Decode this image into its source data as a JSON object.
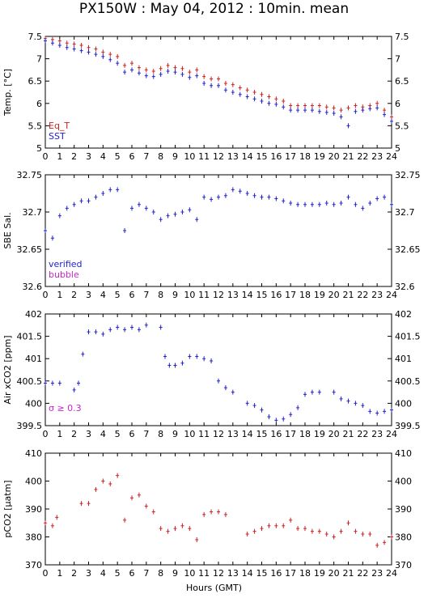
{
  "title": "PX150W : May 04, 2012 : 10min. mean",
  "xlabel": "Hours (GMT)",
  "chart_data": [
    {
      "type": "scatter",
      "ylabel": "Temp. [°C]",
      "ylim": [
        5,
        7.5
      ],
      "yticks": [
        5,
        5.5,
        6,
        6.5,
        7,
        7.5
      ],
      "xlim": [
        0,
        24
      ],
      "xticks": [
        0,
        1,
        2,
        3,
        4,
        5,
        6,
        7,
        8,
        9,
        10,
        11,
        12,
        13,
        14,
        15,
        16,
        17,
        18,
        19,
        20,
        21,
        22,
        23,
        24
      ],
      "legend": [
        {
          "name": "Eq_T",
          "color": "#cc2222"
        },
        {
          "name": "SST",
          "color": "#2222cc"
        }
      ],
      "legend_position": "bottom-left",
      "series": [
        {
          "name": "Eq_T",
          "color": "#cc2222",
          "points": [
            [
              0,
              7.45
            ],
            [
              0.5,
              7.43
            ],
            [
              1,
              7.4
            ],
            [
              1.5,
              7.35
            ],
            [
              2,
              7.33
            ],
            [
              2.5,
              7.3
            ],
            [
              3,
              7.25
            ],
            [
              3.5,
              7.22
            ],
            [
              4,
              7.15
            ],
            [
              4.5,
              7.1
            ],
            [
              5,
              7.05
            ],
            [
              5.5,
              6.85
            ],
            [
              6,
              6.9
            ],
            [
              6.5,
              6.8
            ],
            [
              7,
              6.75
            ],
            [
              7.5,
              6.72
            ],
            [
              8,
              6.78
            ],
            [
              8.5,
              6.85
            ],
            [
              9,
              6.8
            ],
            [
              9.5,
              6.78
            ],
            [
              10,
              6.7
            ],
            [
              10.5,
              6.75
            ],
            [
              11,
              6.6
            ],
            [
              11.5,
              6.55
            ],
            [
              12,
              6.55
            ],
            [
              12.5,
              6.45
            ],
            [
              13,
              6.42
            ],
            [
              13.5,
              6.35
            ],
            [
              14,
              6.3
            ],
            [
              14.5,
              6.25
            ],
            [
              15,
              6.2
            ],
            [
              15.5,
              6.15
            ],
            [
              16,
              6.1
            ],
            [
              16.5,
              6.05
            ],
            [
              17,
              5.95
            ],
            [
              17.5,
              5.95
            ],
            [
              18,
              5.95
            ],
            [
              18.5,
              5.95
            ],
            [
              19,
              5.95
            ],
            [
              19.5,
              5.92
            ],
            [
              20,
              5.9
            ],
            [
              20.5,
              5.85
            ],
            [
              21,
              5.9
            ],
            [
              21.5,
              5.95
            ],
            [
              22,
              5.92
            ],
            [
              22.5,
              5.95
            ],
            [
              23,
              6.0
            ],
            [
              23.5,
              5.85
            ],
            [
              24,
              5.7
            ]
          ]
        },
        {
          "name": "SST",
          "color": "#2222cc",
          "points": [
            [
              0,
              7.4
            ],
            [
              0.5,
              7.35
            ],
            [
              1,
              7.3
            ],
            [
              1.5,
              7.25
            ],
            [
              2,
              7.22
            ],
            [
              2.5,
              7.18
            ],
            [
              3,
              7.15
            ],
            [
              3.5,
              7.1
            ],
            [
              4,
              7.05
            ],
            [
              4.5,
              6.98
            ],
            [
              5,
              6.9
            ],
            [
              5.5,
              6.7
            ],
            [
              6,
              6.75
            ],
            [
              6.5,
              6.68
            ],
            [
              7,
              6.62
            ],
            [
              7.5,
              6.6
            ],
            [
              8,
              6.65
            ],
            [
              8.5,
              6.72
            ],
            [
              9,
              6.7
            ],
            [
              9.5,
              6.65
            ],
            [
              10,
              6.58
            ],
            [
              10.5,
              6.62
            ],
            [
              11,
              6.45
            ],
            [
              11.5,
              6.4
            ],
            [
              12,
              6.4
            ],
            [
              12.5,
              6.3
            ],
            [
              13,
              6.25
            ],
            [
              13.5,
              6.2
            ],
            [
              14,
              6.15
            ],
            [
              14.5,
              6.1
            ],
            [
              15,
              6.05
            ],
            [
              15.5,
              6.0
            ],
            [
              16,
              5.98
            ],
            [
              16.5,
              5.92
            ],
            [
              17,
              5.85
            ],
            [
              17.5,
              5.85
            ],
            [
              18,
              5.85
            ],
            [
              18.5,
              5.85
            ],
            [
              19,
              5.82
            ],
            [
              19.5,
              5.8
            ],
            [
              20,
              5.78
            ],
            [
              20.5,
              5.7
            ],
            [
              21,
              5.5
            ],
            [
              21.5,
              5.82
            ],
            [
              22,
              5.85
            ],
            [
              22.5,
              5.88
            ],
            [
              23,
              5.9
            ],
            [
              23.5,
              5.75
            ],
            [
              24,
              5.6
            ]
          ]
        }
      ]
    },
    {
      "type": "scatter",
      "ylabel": "SBE Sal.",
      "ylim": [
        32.6,
        32.75
      ],
      "yticks": [
        32.6,
        32.65,
        32.7,
        32.75
      ],
      "xlim": [
        0,
        24
      ],
      "xticks": [
        0,
        1,
        2,
        3,
        4,
        5,
        6,
        7,
        8,
        9,
        10,
        11,
        12,
        13,
        14,
        15,
        16,
        17,
        18,
        19,
        20,
        21,
        22,
        23,
        24
      ],
      "legend": [
        {
          "name": "verified",
          "color": "#2222cc"
        },
        {
          "name": "bubble",
          "color": "#cc22cc"
        }
      ],
      "legend_position": "bottom-left",
      "series": [
        {
          "name": "verified",
          "color": "#2222cc",
          "points": [
            [
              0,
              32.675
            ],
            [
              0.5,
              32.665
            ],
            [
              1,
              32.695
            ],
            [
              1.5,
              32.705
            ],
            [
              2,
              32.71
            ],
            [
              2.5,
              32.715
            ],
            [
              3,
              32.715
            ],
            [
              3.5,
              32.72
            ],
            [
              4,
              32.725
            ],
            [
              4.5,
              32.73
            ],
            [
              5,
              32.73
            ],
            [
              5.5,
              32.675
            ],
            [
              6,
              32.705
            ],
            [
              6.5,
              32.71
            ],
            [
              7,
              32.705
            ],
            [
              7.5,
              32.7
            ],
            [
              8,
              32.69
            ],
            [
              8.5,
              32.695
            ],
            [
              9,
              32.697
            ],
            [
              9.5,
              32.7
            ],
            [
              10,
              32.703
            ],
            [
              10.5,
              32.69
            ],
            [
              11,
              32.72
            ],
            [
              11.5,
              32.717
            ],
            [
              12,
              32.72
            ],
            [
              12.5,
              32.722
            ],
            [
              13,
              32.73
            ],
            [
              13.5,
              32.728
            ],
            [
              14,
              32.725
            ],
            [
              14.5,
              32.722
            ],
            [
              15,
              32.72
            ],
            [
              15.5,
              32.72
            ],
            [
              16,
              32.718
            ],
            [
              16.5,
              32.715
            ],
            [
              17,
              32.712
            ],
            [
              17.5,
              32.71
            ],
            [
              18,
              32.71
            ],
            [
              18.5,
              32.71
            ],
            [
              19,
              32.71
            ],
            [
              19.5,
              32.712
            ],
            [
              20,
              32.71
            ],
            [
              20.5,
              32.712
            ],
            [
              21,
              32.72
            ],
            [
              21.5,
              32.71
            ],
            [
              22,
              32.705
            ],
            [
              22.5,
              32.712
            ],
            [
              23,
              32.718
            ],
            [
              23.5,
              32.72
            ],
            [
              24,
              32.71
            ]
          ]
        },
        {
          "name": "bubble",
          "color": "#cc22cc",
          "points": []
        }
      ]
    },
    {
      "type": "scatter",
      "ylabel": "Air xCO2 [ppm]",
      "ylim": [
        399.5,
        402
      ],
      "yticks": [
        399.5,
        400,
        400.5,
        401,
        401.5,
        402
      ],
      "xlim": [
        0,
        24
      ],
      "xticks": [
        0,
        1,
        2,
        3,
        4,
        5,
        6,
        7,
        8,
        9,
        10,
        11,
        12,
        13,
        14,
        15,
        16,
        17,
        18,
        19,
        20,
        21,
        22,
        23,
        24
      ],
      "annotation": "σ ≥ 0.3",
      "annotation_color": "#cc22cc",
      "series": [
        {
          "name": "Air xCO2",
          "color": "#2222cc",
          "points": [
            [
              0,
              400.45
            ],
            [
              0.5,
              400.45
            ],
            [
              1,
              400.45
            ],
            [
              2,
              400.3
            ],
            [
              2.3,
              400.45
            ],
            [
              2.6,
              401.1
            ],
            [
              3,
              401.6
            ],
            [
              3.5,
              401.6
            ],
            [
              4,
              401.55
            ],
            [
              4.5,
              401.65
            ],
            [
              5,
              401.7
            ],
            [
              5.5,
              401.65
            ],
            [
              6,
              401.7
            ],
            [
              6.5,
              401.65
            ],
            [
              7,
              401.75
            ],
            [
              8,
              401.7
            ],
            [
              8.3,
              401.05
            ],
            [
              8.6,
              400.85
            ],
            [
              9,
              400.85
            ],
            [
              9.5,
              400.9
            ],
            [
              10,
              401.05
            ],
            [
              10.5,
              401.05
            ],
            [
              11,
              401.0
            ],
            [
              11.5,
              400.95
            ],
            [
              12,
              400.5
            ],
            [
              12.5,
              400.35
            ],
            [
              13,
              400.25
            ],
            [
              14,
              400.0
            ],
            [
              14.5,
              399.95
            ],
            [
              15,
              399.85
            ],
            [
              15.5,
              399.7
            ],
            [
              16,
              399.62
            ],
            [
              16.5,
              399.65
            ],
            [
              17,
              399.75
            ],
            [
              17.5,
              399.9
            ],
            [
              18,
              400.2
            ],
            [
              18.5,
              400.25
            ],
            [
              19,
              400.25
            ],
            [
              20,
              400.25
            ],
            [
              20.5,
              400.1
            ],
            [
              21,
              400.05
            ],
            [
              21.5,
              400.0
            ],
            [
              22,
              399.95
            ],
            [
              22.5,
              399.82
            ],
            [
              23,
              399.78
            ],
            [
              23.5,
              399.82
            ],
            [
              24,
              399.85
            ]
          ]
        }
      ]
    },
    {
      "type": "scatter",
      "ylabel": "pCO2 [µatm]",
      "ylim": [
        370,
        410
      ],
      "yticks": [
        370,
        380,
        390,
        400,
        410
      ],
      "xlim": [
        0,
        24
      ],
      "xticks": [
        0,
        1,
        2,
        3,
        4,
        5,
        6,
        7,
        8,
        9,
        10,
        11,
        12,
        13,
        14,
        15,
        16,
        17,
        18,
        19,
        20,
        21,
        22,
        23,
        24
      ],
      "series": [
        {
          "name": "pCO2",
          "color": "#cc2222",
          "points": [
            [
              0,
              385
            ],
            [
              0.5,
              384
            ],
            [
              0.8,
              387
            ],
            [
              2.5,
              392
            ],
            [
              3,
              392
            ],
            [
              3.5,
              397
            ],
            [
              4,
              400
            ],
            [
              4.5,
              399
            ],
            [
              5,
              402
            ],
            [
              5.5,
              386
            ],
            [
              6,
              394
            ],
            [
              6.5,
              395
            ],
            [
              7,
              391
            ],
            [
              7.5,
              389
            ],
            [
              8,
              383
            ],
            [
              8.5,
              382
            ],
            [
              9,
              383
            ],
            [
              9.5,
              384
            ],
            [
              10,
              383
            ],
            [
              10.5,
              379
            ],
            [
              11,
              388
            ],
            [
              11.5,
              389
            ],
            [
              12,
              389
            ],
            [
              12.5,
              388
            ],
            [
              14,
              381
            ],
            [
              14.5,
              382
            ],
            [
              15,
              383
            ],
            [
              15.5,
              384
            ],
            [
              16,
              384
            ],
            [
              16.5,
              384
            ],
            [
              17,
              386
            ],
            [
              17.5,
              383
            ],
            [
              18,
              383
            ],
            [
              18.5,
              382
            ],
            [
              19,
              382
            ],
            [
              19.5,
              381
            ],
            [
              20,
              380
            ],
            [
              20.5,
              382
            ],
            [
              21,
              385
            ],
            [
              21.5,
              382
            ],
            [
              22,
              381
            ],
            [
              22.5,
              381
            ],
            [
              23,
              377
            ],
            [
              23.5,
              378
            ],
            [
              24,
              380
            ]
          ]
        }
      ]
    }
  ]
}
